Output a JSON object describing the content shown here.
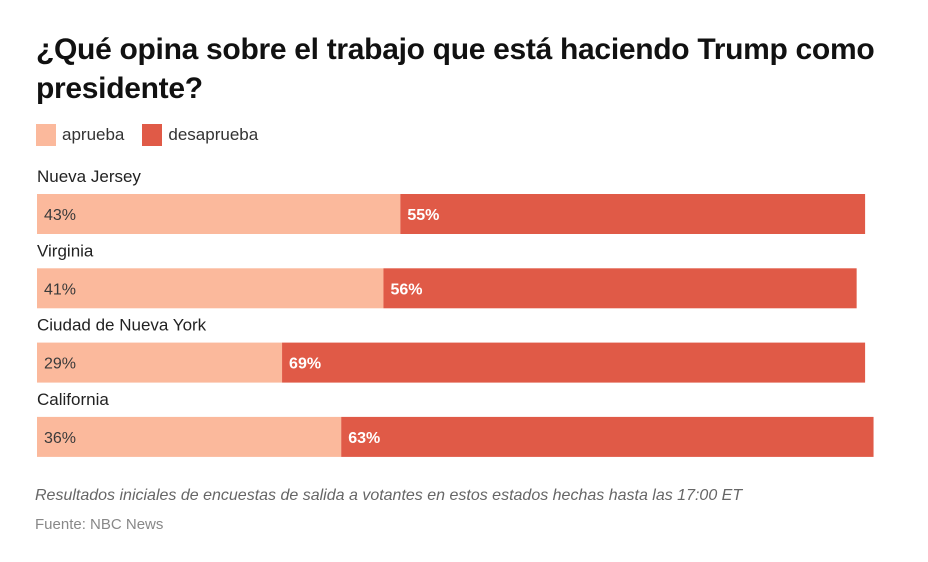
{
  "chart_data": {
    "type": "bar",
    "orientation": "horizontal-stacked",
    "title": "¿Qué opina sobre el trabajo que está haciendo Trump como presidente?",
    "categories": [
      "Nueva Jersey",
      "Virginia",
      "Ciudad de Nueva York",
      "California"
    ],
    "series": [
      {
        "name": "aprueba",
        "color": "#fbb99c",
        "values": [
          43,
          41,
          29,
          36
        ],
        "labels": [
          "43%",
          "41%",
          "29%",
          "36%"
        ]
      },
      {
        "name": "desaprueba",
        "color": "#e05a47",
        "values": [
          55,
          56,
          69,
          63
        ],
        "labels": [
          "55%",
          "56%",
          "69%",
          "63%"
        ]
      }
    ],
    "xlim": [
      0,
      100
    ],
    "legend": "top-left",
    "grid": false
  },
  "note": "Resultados iniciales de encuestas de salida a votantes en estos estados hechas hasta las 17:00 ET",
  "source": "Fuente: NBC News"
}
